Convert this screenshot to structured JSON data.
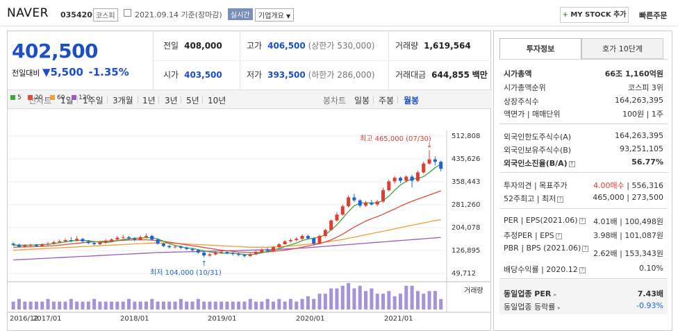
{
  "header": {
    "stock_name": "NAVER",
    "stock_code": "035420",
    "market_badge": "코스피",
    "date_text": "2021.09.14 기준(장마감)",
    "realtime_label": "실시간",
    "company_info_label": "기업개요",
    "my_stock_label": "MY STOCK 추가",
    "quick_order_label": "빠른주문"
  },
  "quote": {
    "price": "402,500",
    "change_label": "전일대비",
    "change_value": "5,500",
    "change_rate": "-1.35%",
    "prev_close_label": "전일",
    "prev_close": "408,000",
    "high_label": "고가",
    "high": "406,500",
    "upper_limit": "(상한가 530,000)",
    "volume_label": "거래량",
    "volume": "1,619,564",
    "open_label": "시가",
    "open": "403,500",
    "low_label": "저가",
    "low": "393,500",
    "lower_limit": "(하한가 286,000)",
    "amount_label": "거래대금",
    "amount": "644,855",
    "amount_unit": "백만"
  },
  "period_tabs": {
    "label": "선차트",
    "items": [
      "1일",
      "1주일",
      "3개월",
      "1년",
      "3년",
      "5년",
      "10년"
    ],
    "candle_label": "봉차트",
    "candle_items": [
      "일봉",
      "주봉",
      "월봉"
    ],
    "active_candle": "월봉"
  },
  "colors": {
    "up": "#e03c31",
    "down": "#1b64d8",
    "ma5": "#3aa63a",
    "ma20": "#e04a3a",
    "ma60": "#f39c35",
    "ma120": "#9b59c6",
    "volume": "#a493d8"
  },
  "chart_data": {
    "type": "candlestick",
    "legend": [
      "5",
      "20",
      "60",
      "120"
    ],
    "y_ticks": [
      "512,808",
      "435,626",
      "358,443",
      "281,260",
      "204,078",
      "126,895",
      "49,712"
    ],
    "ylim": [
      49712,
      512808
    ],
    "x_ticks": [
      "2016/12",
      "2017/01",
      "2018/01",
      "2019/01",
      "2020/01",
      "2021/01"
    ],
    "volume_label": "거래량",
    "high_annotation": "최고 465,000 (07/30)",
    "low_annotation": "최저 104,000 (10/31)",
    "candles": [
      [
        150000,
        146000,
        154000,
        142000
      ],
      [
        146000,
        140000,
        150000,
        136000
      ],
      [
        140000,
        144000,
        148000,
        137000
      ],
      [
        144000,
        146000,
        150000,
        140000
      ],
      [
        146000,
        142000,
        149000,
        139000
      ],
      [
        142000,
        147000,
        151000,
        140000
      ],
      [
        147000,
        150000,
        156000,
        144000
      ],
      [
        150000,
        155000,
        160000,
        147000
      ],
      [
        155000,
        158000,
        164000,
        151000
      ],
      [
        158000,
        162000,
        168000,
        154000
      ],
      [
        162000,
        160000,
        172000,
        155000
      ],
      [
        160000,
        166000,
        175000,
        157000
      ],
      [
        166000,
        158000,
        170000,
        152000
      ],
      [
        158000,
        152000,
        162000,
        148000
      ],
      [
        152000,
        148000,
        156000,
        144000
      ],
      [
        148000,
        154000,
        158000,
        145000
      ],
      [
        154000,
        160000,
        165000,
        150000
      ],
      [
        160000,
        164000,
        168000,
        156000
      ],
      [
        164000,
        170000,
        176000,
        160000
      ],
      [
        170000,
        172000,
        180000,
        166000
      ],
      [
        172000,
        168000,
        176000,
        162000
      ],
      [
        168000,
        164000,
        172000,
        158000
      ],
      [
        164000,
        172000,
        178000,
        160000
      ],
      [
        172000,
        176000,
        184000,
        168000
      ],
      [
        176000,
        164000,
        180000,
        160000
      ],
      [
        164000,
        150000,
        168000,
        146000
      ],
      [
        150000,
        142000,
        154000,
        138000
      ],
      [
        142000,
        138000,
        146000,
        134000
      ],
      [
        138000,
        140000,
        145000,
        134000
      ],
      [
        140000,
        136000,
        144000,
        132000
      ],
      [
        136000,
        132000,
        140000,
        128000
      ],
      [
        132000,
        128000,
        136000,
        122000
      ],
      [
        128000,
        120000,
        132000,
        116000
      ],
      [
        120000,
        110000,
        124000,
        104000
      ],
      [
        110000,
        114000,
        118000,
        106000
      ],
      [
        114000,
        120000,
        125000,
        110000
      ],
      [
        120000,
        122000,
        128000,
        116000
      ],
      [
        122000,
        118000,
        126000,
        114000
      ],
      [
        118000,
        115000,
        122000,
        110000
      ],
      [
        115000,
        112000,
        120000,
        108000
      ],
      [
        112000,
        108000,
        116000,
        104000
      ],
      [
        108000,
        114000,
        118000,
        106000
      ],
      [
        114000,
        122000,
        126000,
        112000
      ],
      [
        122000,
        130000,
        134000,
        120000
      ],
      [
        130000,
        126000,
        136000,
        122000
      ],
      [
        126000,
        138000,
        142000,
        124000
      ],
      [
        138000,
        148000,
        152000,
        136000
      ],
      [
        148000,
        158000,
        162000,
        146000
      ],
      [
        158000,
        162000,
        168000,
        154000
      ],
      [
        162000,
        166000,
        172000,
        158000
      ],
      [
        166000,
        176000,
        182000,
        162000
      ],
      [
        176000,
        168000,
        180000,
        164000
      ],
      [
        168000,
        150000,
        172000,
        144000
      ],
      [
        150000,
        176000,
        180000,
        148000
      ],
      [
        176000,
        196000,
        200000,
        172000
      ],
      [
        196000,
        228000,
        232000,
        194000
      ],
      [
        228000,
        248000,
        256000,
        224000
      ],
      [
        248000,
        276000,
        282000,
        244000
      ],
      [
        276000,
        306000,
        312000,
        272000
      ],
      [
        306000,
        296000,
        318000,
        290000
      ],
      [
        296000,
        278000,
        300000,
        272000
      ],
      [
        278000,
        288000,
        294000,
        274000
      ],
      [
        288000,
        282000,
        298000,
        278000
      ],
      [
        282000,
        292000,
        298000,
        276000
      ],
      [
        292000,
        330000,
        338000,
        288000
      ],
      [
        330000,
        360000,
        366000,
        326000
      ],
      [
        360000,
        372000,
        378000,
        352000
      ],
      [
        372000,
        362000,
        376000,
        354000
      ],
      [
        362000,
        376000,
        380000,
        356000
      ],
      [
        376000,
        362000,
        382000,
        340000
      ],
      [
        362000,
        390000,
        396000,
        358000
      ],
      [
        390000,
        420000,
        426000,
        386000
      ],
      [
        420000,
        434000,
        465000,
        416000
      ],
      [
        434000,
        426000,
        444000,
        414000
      ],
      [
        426000,
        402500,
        430000,
        393500
      ]
    ],
    "volumes": [
      3,
      4,
      3,
      3,
      3,
      3,
      4,
      3,
      3,
      3,
      4,
      3,
      3,
      3,
      4,
      3,
      3,
      3,
      3,
      3,
      4,
      3,
      3,
      3,
      4,
      3,
      3,
      3,
      3,
      4,
      3,
      3,
      4,
      3,
      3,
      3,
      3,
      3,
      3,
      3,
      3,
      4,
      3,
      3,
      4,
      3,
      4,
      3,
      4,
      3,
      4,
      5,
      4,
      6,
      6,
      8,
      8,
      9,
      10,
      8,
      9,
      7,
      8,
      6,
      6,
      7,
      5,
      6,
      9,
      9,
      7,
      6,
      7,
      7,
      4
    ],
    "ma5": [
      145000,
      145000,
      145000,
      145000,
      146000,
      147000,
      148000,
      150000,
      153000,
      156000,
      159000,
      161000,
      161000,
      160000,
      157000,
      155000,
      154000,
      156000,
      160000,
      164000,
      166000,
      168000,
      169000,
      170000,
      170000,
      166000,
      158000,
      150000,
      144000,
      140000,
      136000,
      134000,
      130000,
      126000,
      122000,
      120000,
      118000,
      118000,
      118000,
      116000,
      114000,
      113000,
      115000,
      119000,
      124000,
      128000,
      134000,
      140000,
      146000,
      152000,
      160000,
      166000,
      168000,
      172000,
      180000,
      196000,
      214000,
      236000,
      258000,
      278000,
      286000,
      288000,
      287000,
      288000,
      295000,
      310000,
      330000,
      348000,
      360000,
      368000,
      370000,
      376000,
      390000,
      406000,
      418000
    ],
    "ma20": [
      138000,
      138500,
      139000,
      139500,
      140000,
      141000,
      142000,
      143000,
      145000,
      147000,
      149000,
      151000,
      153000,
      155000,
      156000,
      157000,
      158000,
      159000,
      160000,
      161000,
      162000,
      163000,
      163000,
      163000,
      162000,
      160000,
      158000,
      155000,
      152000,
      149000,
      146000,
      143000,
      140000,
      137000,
      134000,
      131000,
      128000,
      126000,
      124000,
      122000,
      121000,
      120000,
      120000,
      121000,
      122000,
      124000,
      126000,
      128000,
      131000,
      134000,
      138000,
      142000,
      146000,
      150000,
      156000,
      163000,
      172000,
      182000,
      194000,
      206000,
      216000,
      226000,
      234000,
      241000,
      249000,
      258000,
      267000,
      276000,
      285000,
      293000,
      300000,
      307000,
      314000,
      321000,
      328000
    ],
    "ma60": [
      128000,
      129000,
      130000,
      131000,
      132000,
      133000,
      134000,
      135000,
      136000,
      137000,
      138000,
      139000,
      140000,
      141000,
      142000,
      143000,
      144000,
      145000,
      146000,
      147000,
      148000,
      149000,
      150000,
      151000,
      152000,
      152000,
      152000,
      152000,
      151000,
      150000,
      149000,
      148000,
      147000,
      146000,
      145000,
      144000,
      143000,
      142000,
      141000,
      140000,
      139000,
      138000,
      138000,
      138000,
      138000,
      139000,
      140000,
      141000,
      142000,
      144000,
      146000,
      148000,
      150000,
      152000,
      155000,
      158000,
      161000,
      164000,
      168000,
      172000,
      176000,
      180000,
      184000,
      188000,
      192000,
      196000,
      200000,
      204000,
      208000,
      212000,
      216000,
      220000,
      224000,
      228000,
      231000
    ],
    "ma120": [
      95000,
      96000,
      97000,
      98000,
      99000,
      100000,
      101000,
      102000,
      103000,
      104000,
      105000,
      106000,
      107000,
      108000,
      109000,
      110000,
      111000,
      112000,
      113000,
      114000,
      115000,
      116000,
      117000,
      118000,
      119000,
      120000,
      120500,
      121000,
      121500,
      122000,
      122500,
      123000,
      123500,
      124000,
      124500,
      125000,
      125500,
      126000,
      126500,
      127000,
      127500,
      128000,
      128500,
      129000,
      129500,
      130000,
      131000,
      132000,
      133000,
      134000,
      135000,
      136500,
      138000,
      139500,
      141000,
      142500,
      144000,
      145500,
      147000,
      148500,
      150000,
      151500,
      153000,
      154500,
      156000,
      157500,
      159000,
      160500,
      162000,
      163500,
      165000,
      166500,
      168000,
      169500,
      171000
    ]
  },
  "side": {
    "tab_active": "투자정보",
    "tab_other": "호가 10단계",
    "market_cap_label": "시가총액",
    "market_cap": "66조 1,160억원",
    "cap_rank_label": "시가총액순위",
    "cap_rank": "코스피 3위",
    "shares_label": "상장주식수",
    "shares": "164,263,395",
    "face_label": "액면가 | 매매단위",
    "face": "100원 | 1주",
    "foreign_limit_label": "외국인한도주식수(A)",
    "foreign_limit": "164,263,395",
    "foreign_hold_label": "외국인보유주식수(B)",
    "foreign_hold": "93,251,105",
    "foreign_ratio_label": "외국인소진율(B/A)",
    "foreign_ratio": "56.77%",
    "opinion_label": "투자의견 | 목표주가",
    "opinion": "4.00매수",
    "target": "556,316",
    "week52_label": "52주최고 | 최저",
    "week52_high": "465,000",
    "week52_low": "273,500",
    "per_label": "PER | EPS(2021.06)",
    "per": "4.01배",
    "eps": "100,498원",
    "est_per_label": "추정PER | EPS",
    "est_per": "3.98배",
    "est_eps": "101,087원",
    "pbr_label": "PBR | BPS (2021.06)",
    "pbr": "2.62배",
    "bps": "153,343원",
    "div_label": "배당수익률 | 2020.12",
    "div": "0.10%",
    "sector_per_label": "동일업종 PER",
    "sector_per": "7.43배",
    "sector_rate_label": "동일업종 등락률",
    "sector_rate": "-0.93%"
  }
}
